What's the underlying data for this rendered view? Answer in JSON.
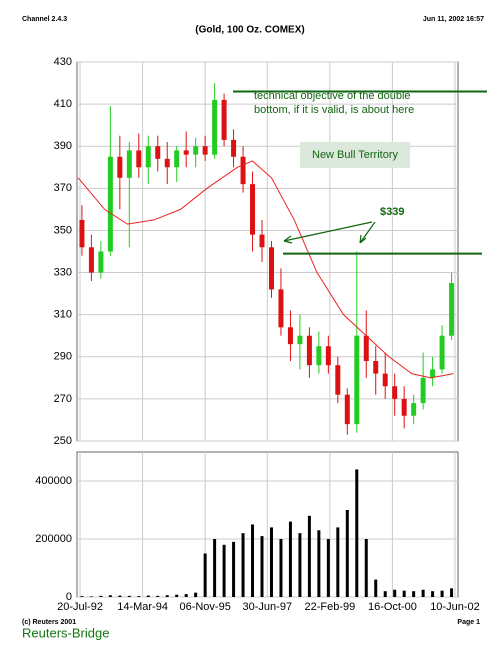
{
  "header": {
    "left": "Channel 2.4.3",
    "right": "Jun 11, 2002 16:57"
  },
  "footer": {
    "copyright": "(c) Reuters  2001",
    "brand": "Reuters-Bridge",
    "page": "Page 1"
  },
  "chart_data": [
    {
      "type": "candlestick",
      "title": "(Gold, 100 Oz. COMEX)",
      "up_color": "#22cc22",
      "down_color": "#dd1111",
      "ohlc": {
        "x": [
          1992.6,
          1992.85,
          1993.1,
          1993.35,
          1993.6,
          1993.85,
          1994.1,
          1994.35,
          1994.6,
          1994.85,
          1995.1,
          1995.35,
          1995.6,
          1995.85,
          1996.1,
          1996.35,
          1996.6,
          1996.85,
          1997.1,
          1997.35,
          1997.6,
          1997.85,
          1998.1,
          1998.35,
          1998.6,
          1998.85,
          1999.1,
          1999.35,
          1999.6,
          1999.85,
          2000.1,
          2000.35,
          2000.6,
          2000.85,
          2001.1,
          2001.35,
          2001.6,
          2001.85,
          2002.1,
          2002.35
        ],
        "open": [
          355,
          342,
          330,
          340,
          385,
          375,
          388,
          380,
          390,
          384,
          380,
          388,
          386,
          390,
          386,
          412,
          393,
          385,
          372,
          348,
          342,
          322,
          304,
          296,
          300,
          286,
          295,
          286,
          272,
          258,
          300,
          288,
          282,
          276,
          270,
          262,
          268,
          280,
          284,
          300
        ],
        "high": [
          362,
          348,
          345,
          409,
          395,
          392,
          396,
          395,
          395,
          392,
          390,
          397,
          394,
          395,
          420,
          415,
          398,
          390,
          378,
          355,
          345,
          332,
          312,
          310,
          304,
          302,
          300,
          290,
          275,
          340,
          312,
          295,
          292,
          282,
          276,
          272,
          292,
          290,
          305,
          330
        ],
        "low": [
          338,
          326,
          327,
          338,
          360,
          342,
          375,
          372,
          378,
          372,
          373,
          380,
          380,
          383,
          384,
          390,
          380,
          368,
          340,
          335,
          318,
          300,
          288,
          284,
          280,
          282,
          282,
          268,
          253,
          254,
          280,
          272,
          270,
          262,
          256,
          258,
          265,
          276,
          282,
          298
        ],
        "close": [
          342,
          330,
          340,
          385,
          375,
          388,
          380,
          390,
          384,
          380,
          388,
          386,
          390,
          386,
          412,
          393,
          385,
          372,
          348,
          342,
          322,
          304,
          296,
          300,
          286,
          295,
          286,
          272,
          258,
          300,
          288,
          282,
          276,
          270,
          262,
          268,
          280,
          284,
          300,
          325
        ]
      },
      "moving_average": {
        "color": "#ee2222",
        "x": [
          1992.5,
          1993.2,
          1993.8,
          1994.5,
          1995.2,
          1995.9,
          1996.7,
          1997.1,
          1997.6,
          1998.2,
          1998.8,
          1999.5,
          2000.1,
          2000.7,
          2001.3,
          2001.8,
          2002.4
        ],
        "values": [
          375,
          360,
          353,
          355,
          360,
          370,
          380,
          383,
          375,
          355,
          330,
          310,
          300,
          290,
          282,
          280,
          282
        ]
      },
      "xlim": [
        1992.47,
        2002.52
      ],
      "ylim": [
        250,
        430
      ],
      "yticks": [
        250,
        270,
        290,
        310,
        330,
        350,
        370,
        390,
        410,
        430
      ],
      "xticks": [
        {
          "value": 1992.55,
          "label": "20-Jul-92"
        },
        {
          "value": 1994.2,
          "label": "14-Mar-94"
        },
        {
          "value": 1995.85,
          "label": "06-Nov-95"
        },
        {
          "value": 1997.49,
          "label": "30-Jun-97"
        },
        {
          "value": 1999.14,
          "label": "22-Feb-99"
        },
        {
          "value": 2000.79,
          "label": "16-Oct-00"
        },
        {
          "value": 2002.44,
          "label": "10-Jun-02"
        }
      ],
      "grid": true,
      "annotations": {
        "color": "#116611",
        "objective_text": [
          "technical objective of the double",
          "bottom, if it is valid, is about here"
        ],
        "objective_level": 416,
        "bull_text": "New Bull Territory",
        "level_text": "$339",
        "level": 339
      }
    },
    {
      "type": "bar",
      "color": "#000000",
      "x": [
        1992.6,
        1992.85,
        1993.1,
        1993.35,
        1993.6,
        1993.85,
        1994.1,
        1994.35,
        1994.6,
        1994.85,
        1995.1,
        1995.35,
        1995.6,
        1995.85,
        1996.1,
        1996.35,
        1996.6,
        1996.85,
        1997.1,
        1997.35,
        1997.6,
        1997.85,
        1998.1,
        1998.35,
        1998.6,
        1998.85,
        1999.1,
        1999.35,
        1999.6,
        1999.85,
        2000.1,
        2000.35,
        2000.6,
        2000.85,
        2001.1,
        2001.35,
        2001.6,
        2001.85,
        2002.1,
        2002.35
      ],
      "values": [
        3000,
        2000,
        4000,
        6000,
        5000,
        4000,
        3000,
        5000,
        4000,
        6000,
        8000,
        10000,
        15000,
        150000,
        200000,
        180000,
        190000,
        220000,
        250000,
        210000,
        240000,
        200000,
        260000,
        220000,
        280000,
        230000,
        200000,
        240000,
        300000,
        440000,
        200000,
        60000,
        20000,
        25000,
        22000,
        20000,
        25000,
        20000,
        22000,
        30000
      ],
      "xlim": [
        1992.47,
        2002.52
      ],
      "ylim": [
        0,
        500000
      ],
      "yticks": [
        0,
        200000,
        400000
      ],
      "grid": true
    }
  ]
}
